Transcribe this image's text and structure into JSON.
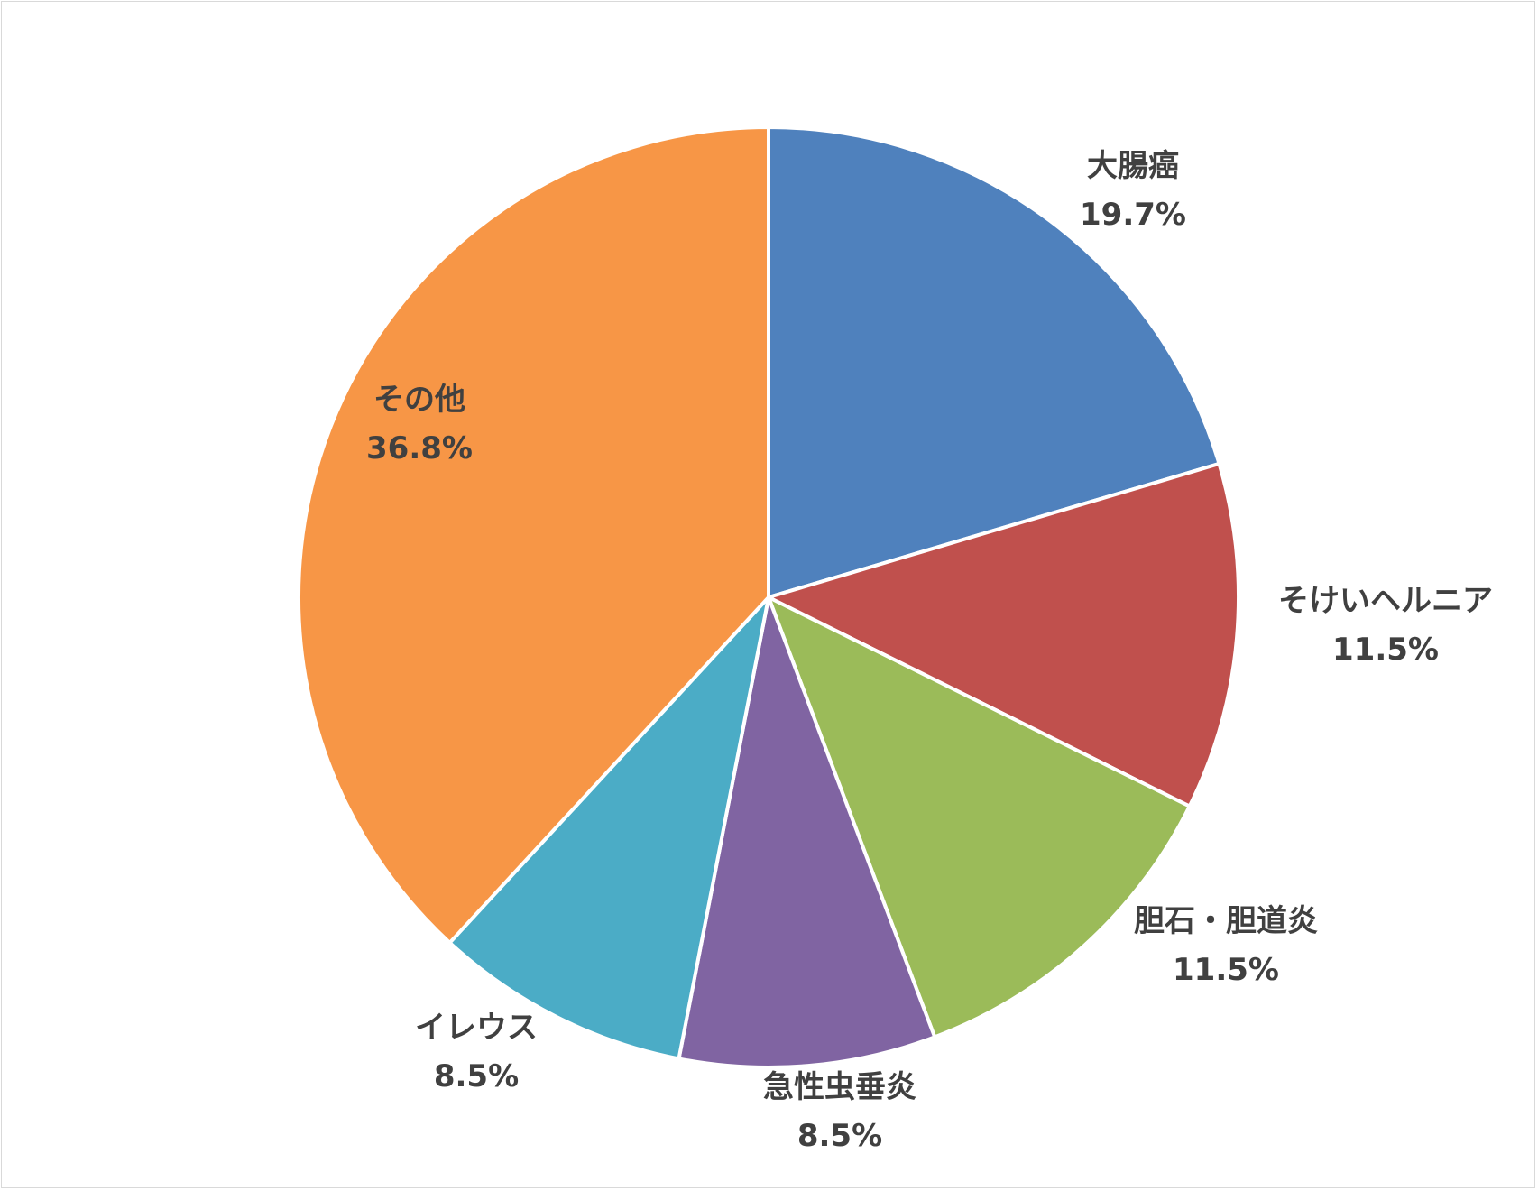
{
  "chart_data": {
    "type": "pie",
    "title": "",
    "start_angle_deg": 0,
    "direction": "clockwise",
    "slices": [
      {
        "label": "大腸癌",
        "value": 19.7,
        "display": "19.7%",
        "color": "#4F81BD"
      },
      {
        "label": "そけいヘルニア",
        "value": 11.5,
        "display": "11.5%",
        "color": "#C0504D"
      },
      {
        "label": "胆石・胆道炎",
        "value": 11.5,
        "display": "11.5%",
        "color": "#9BBB59"
      },
      {
        "label": "急性虫垂炎",
        "value": 8.5,
        "display": "8.5%",
        "color": "#8064A2"
      },
      {
        "label": "イレウス",
        "value": 8.5,
        "display": "8.5%",
        "color": "#4BACC6"
      },
      {
        "label": "その他",
        "value": 36.8,
        "display": "36.8%",
        "color": "#F79646"
      }
    ],
    "legend": "none",
    "data_labels": "category and percent, outside slices"
  }
}
